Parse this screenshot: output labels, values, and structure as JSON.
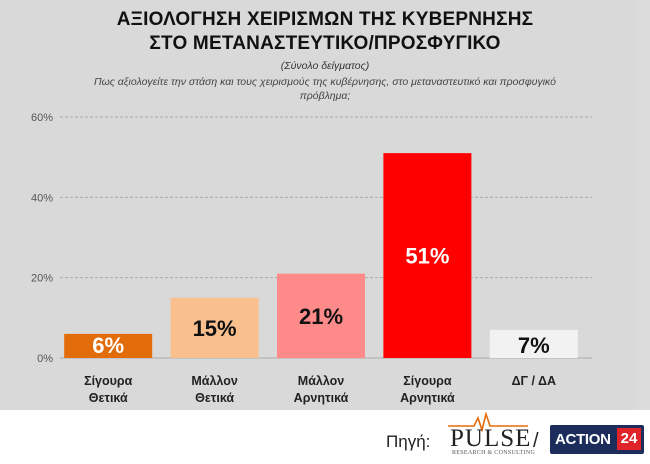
{
  "header": {
    "title_line1": "ΑΞΙΟΛΟΓΗΣΗ ΧΕΙΡΙΣΜΩΝ ΤΗΣ ΚΥΒΕΡΝΗΣΗΣ",
    "title_line2": "ΣΤΟ ΜΕΤΑΝΑΣΤΕΥΤΙΚΟ/ΠΡΟΣΦΥΓΙΚΟ",
    "subtitle": "(Σύνολο δείγματος)",
    "question": "Πως αξιολογείτε την στάση και τους χειρισμούς της κυβέρνησης, στο μεταναστευτικό και προσφυγικό πρόβλημα;"
  },
  "chart_data": {
    "type": "bar",
    "categories": [
      [
        "Σίγουρα",
        "Θετικά"
      ],
      [
        "Μάλλον",
        "Θετικά"
      ],
      [
        "Μάλλον",
        "Αρνητικά"
      ],
      [
        "Σίγουρα",
        "Αρνητικά"
      ],
      [
        "ΔΓ / ΔΑ"
      ]
    ],
    "values": [
      6,
      15,
      21,
      51,
      7
    ],
    "data_labels": [
      "6%",
      "15%",
      "21%",
      "51%",
      "7%"
    ],
    "colors": [
      "#e36c0a",
      "#f9c08e",
      "#ff8a8a",
      "#ff0000",
      "#f2f2f2"
    ],
    "label_colors": [
      "#ffffff",
      "#111111",
      "#111111",
      "#ffffff",
      "#111111"
    ],
    "y_ticks": [
      "0%",
      "20%",
      "40%",
      "60%"
    ],
    "y_tick_values": [
      0,
      20,
      40,
      60
    ],
    "ylim": [
      0,
      60
    ],
    "grid": true,
    "gridline_color": "#aaaaaa",
    "legend": "none"
  },
  "footer": {
    "source_label": "Πηγή:",
    "pulse_name": "PULSE",
    "pulse_tagline": "RESEARCH & CONSULTING",
    "separator": "/",
    "action_name": "ACTION",
    "action_number": "24"
  }
}
